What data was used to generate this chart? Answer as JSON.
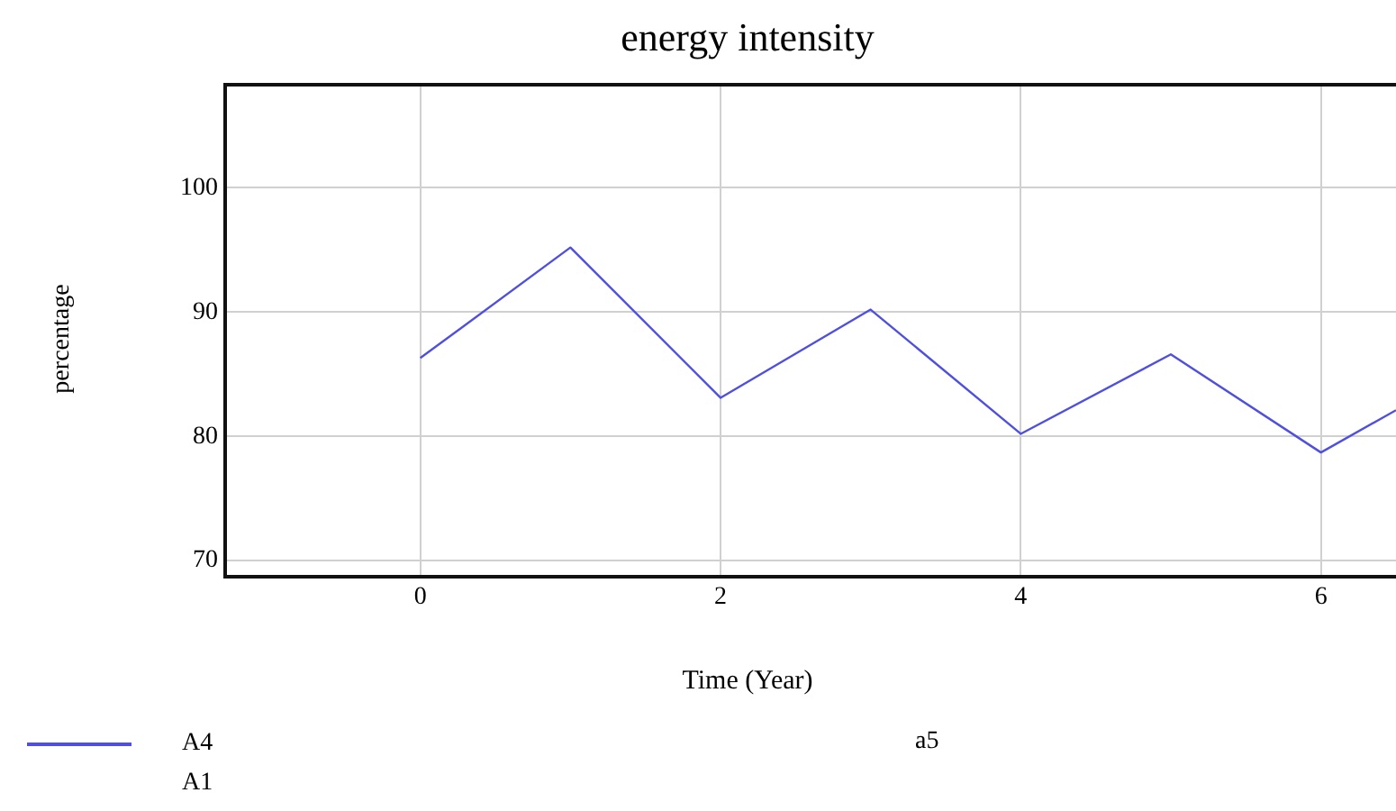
{
  "chart_data": {
    "type": "line",
    "title": "energy intensity",
    "xlabel": "Time (Year)",
    "ylabel": "percentage",
    "x": [
      0,
      1,
      2,
      3,
      4,
      5,
      6,
      6.5
    ],
    "series": [
      {
        "name": "A4",
        "color": "#4f4fe0",
        "values": [
          86.3,
          95.2,
          83.1,
          90.2,
          80.2,
          86.6,
          78.7,
          82.1
        ]
      }
    ],
    "xlim": [
      -1.3,
      6.5
    ],
    "xticks": [
      0,
      2,
      4,
      6
    ],
    "ylim": [
      68.7,
      108.3
    ],
    "yticks": [
      70,
      80,
      90,
      100
    ],
    "grid": true,
    "legend": "bottom",
    "marker": "none",
    "line_style": "solid",
    "annotations": [
      "A1",
      "a5"
    ]
  }
}
